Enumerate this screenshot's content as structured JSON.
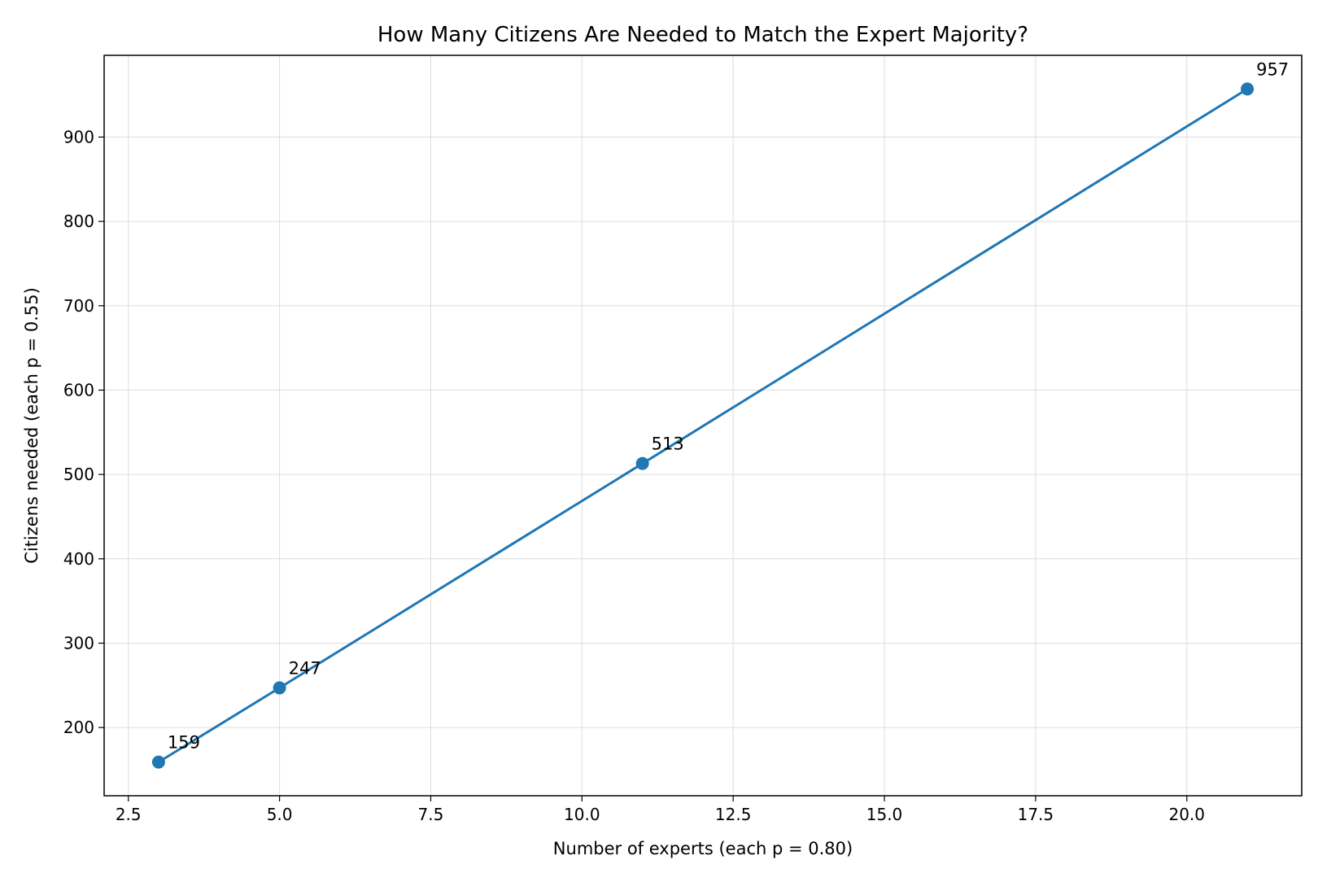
{
  "chart_data": {
    "type": "line",
    "title": "How Many Citizens Are Needed to Match the Expert Majority?",
    "xlabel": "Number of experts (each p = 0.80)",
    "ylabel": "Citizens needed (each p = 0.55)",
    "x": [
      3,
      5,
      11,
      21
    ],
    "series": [
      {
        "values": [
          159,
          247,
          513,
          957
        ],
        "color": "#1f77b4",
        "marker": "circle"
      }
    ],
    "data_labels": [
      "159",
      "247",
      "513",
      "957"
    ],
    "xlim": [
      2.1,
      21.9
    ],
    "ylim": [
      119.1,
      996.9
    ],
    "x_ticks": [
      2.5,
      5.0,
      7.5,
      10.0,
      12.5,
      15.0,
      17.5,
      20.0
    ],
    "x_tick_labels": [
      "2.5",
      "5.0",
      "7.5",
      "10.0",
      "12.5",
      "15.0",
      "17.5",
      "20.0"
    ],
    "y_ticks": [
      200,
      300,
      400,
      500,
      600,
      700,
      800,
      900
    ],
    "y_tick_labels": [
      "200",
      "300",
      "400",
      "500",
      "600",
      "700",
      "800",
      "900"
    ],
    "grid": true,
    "legend": "none"
  }
}
